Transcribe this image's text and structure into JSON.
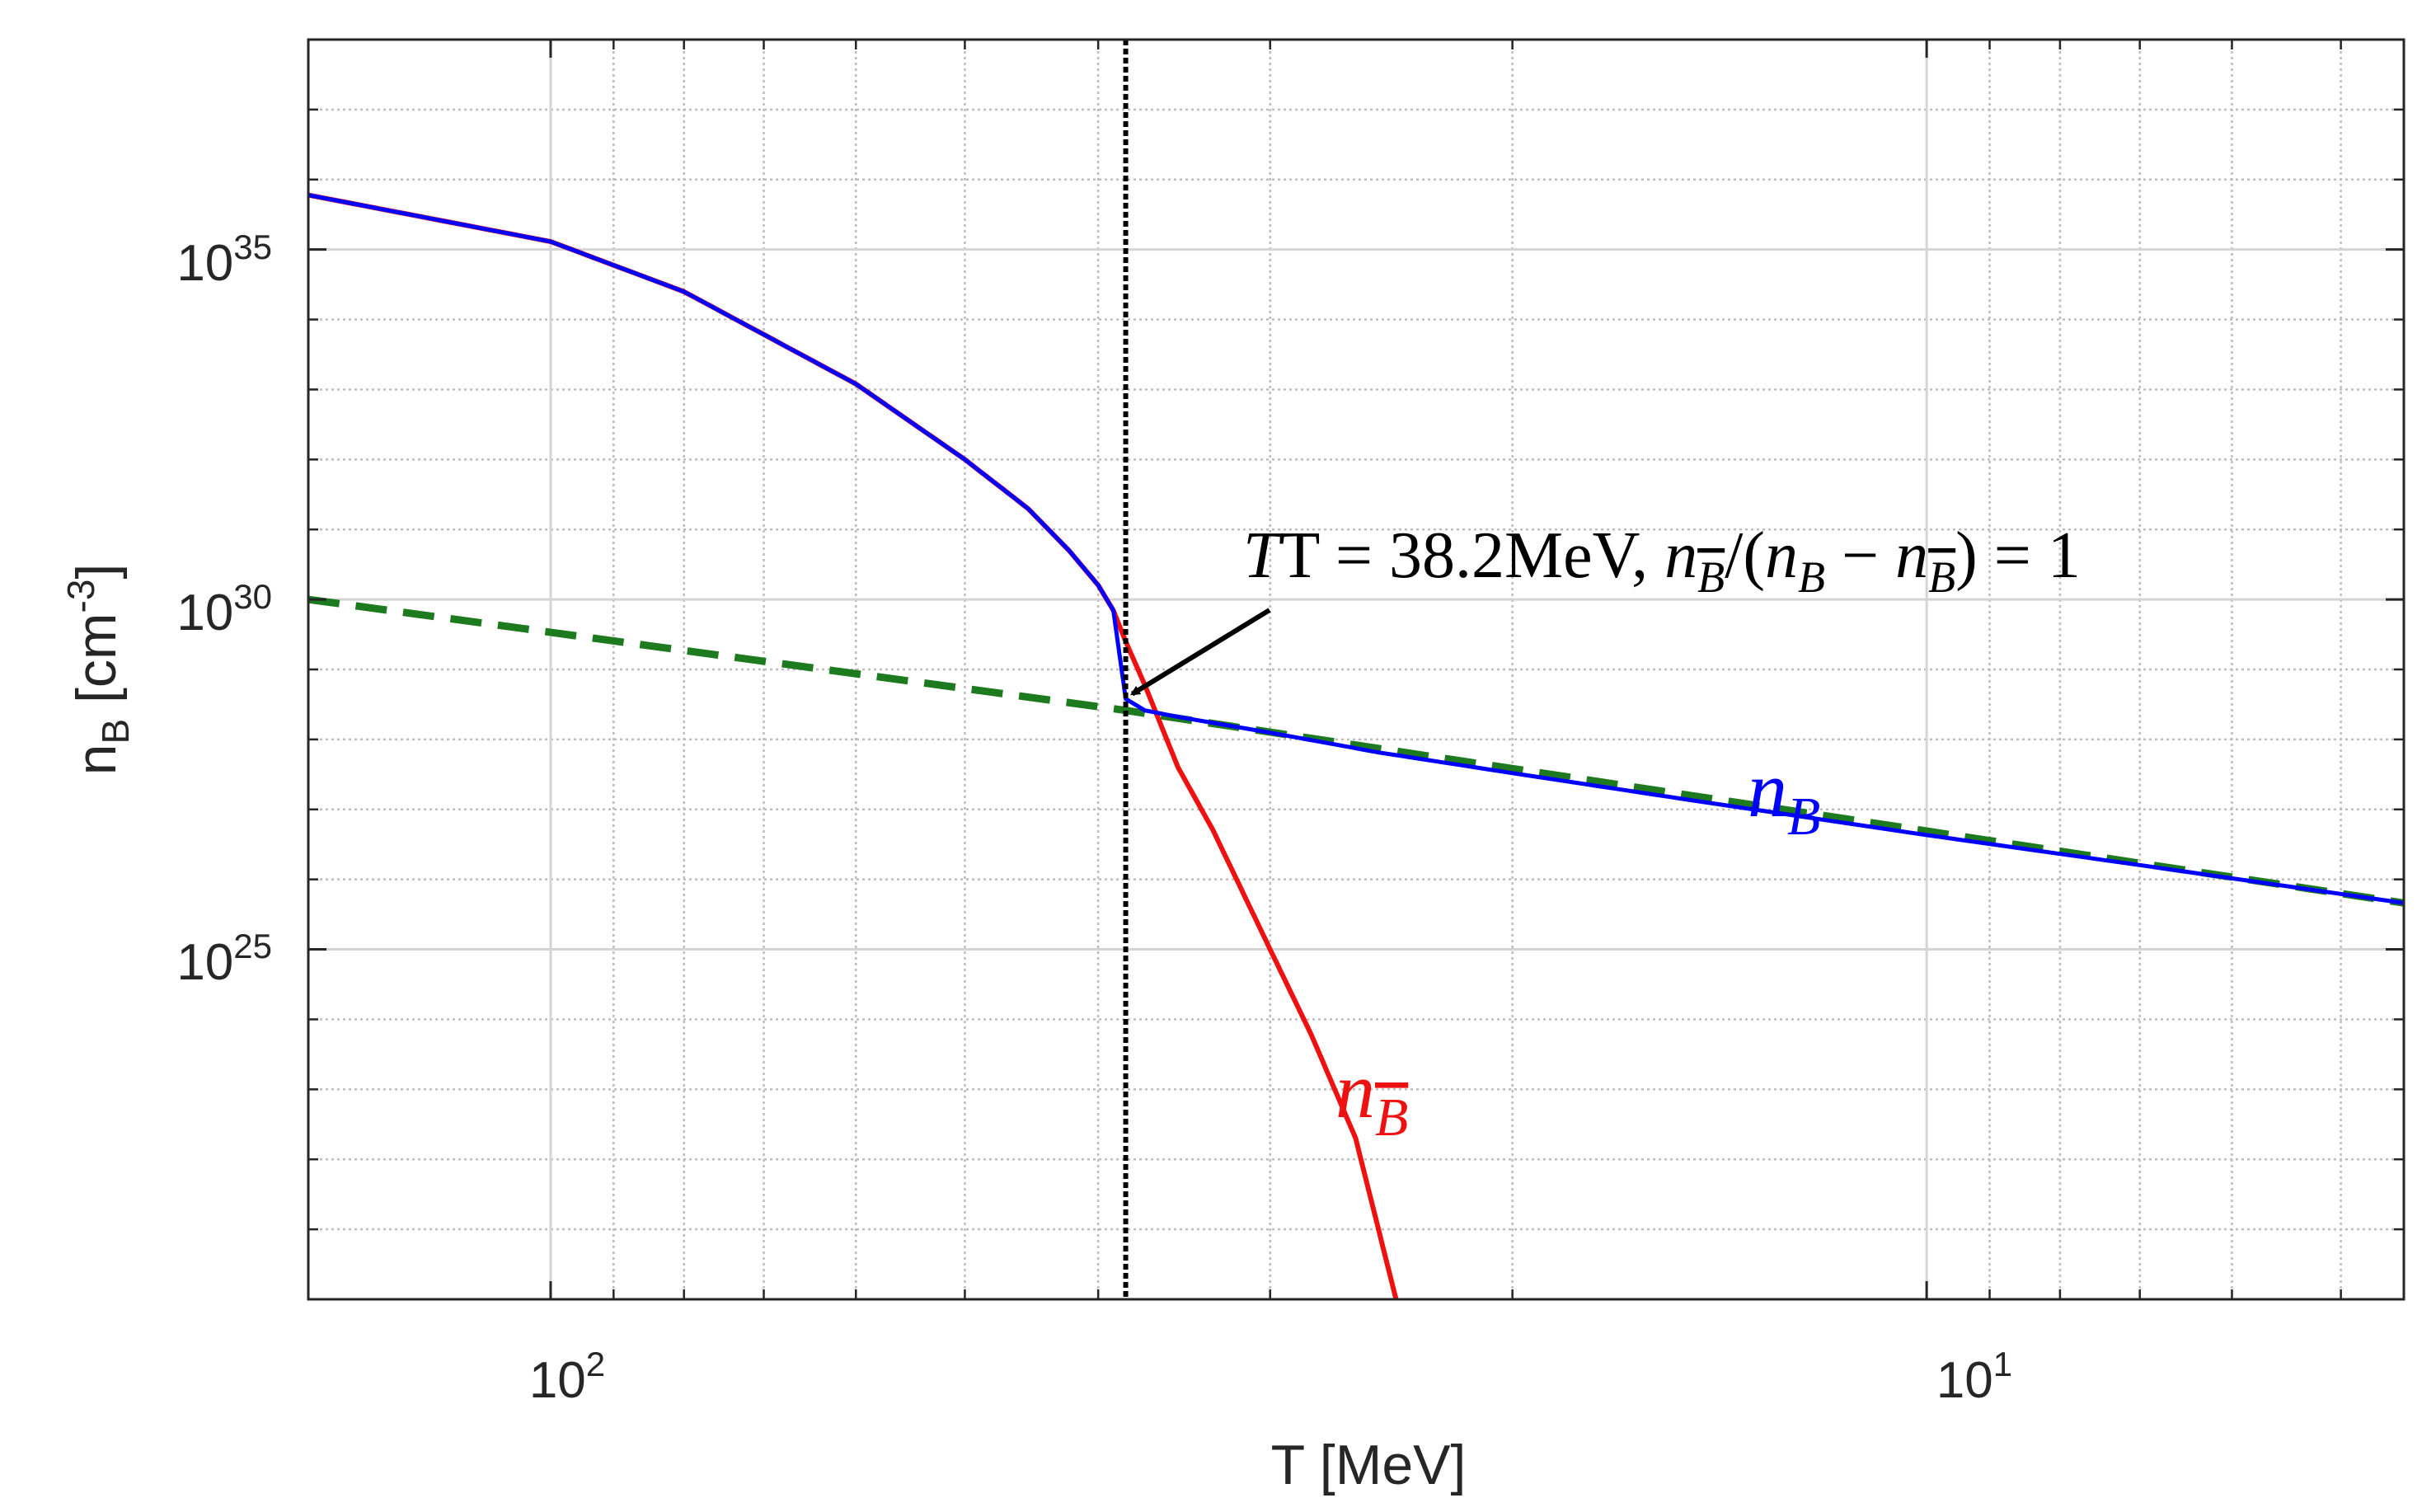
{
  "chart_data": {
    "type": "line",
    "title": "",
    "xlabel": "T [MeV]",
    "ylabel": {
      "base": "n",
      "sub": "B",
      "unit_open": " [cm",
      "unit_sup": "-3",
      "unit_close": "]"
    },
    "x_scale": "log",
    "x_reversed": true,
    "y_scale": "log",
    "xlim": [
      150,
      4.5
    ],
    "ylim": [
      1e+20,
      1e+38
    ],
    "grid": true,
    "x_major_ticks": [
      {
        "value": 100,
        "base": "10",
        "exp": "2"
      },
      {
        "value": 10,
        "base": "10",
        "exp": "1"
      }
    ],
    "y_major_ticks": [
      {
        "value": 1e+25,
        "base": "10",
        "exp": "25"
      },
      {
        "value": 1e+30,
        "base": "10",
        "exp": "30"
      },
      {
        "value": 1e+35,
        "base": "10",
        "exp": "35"
      }
    ],
    "series": [
      {
        "name": "n_B",
        "label_text": "n",
        "label_sub": "B",
        "color": "#0000ff",
        "style": "solid",
        "points": [
          [
            150,
            6e+35
          ],
          [
            100,
            1.3e+35
          ],
          [
            80,
            2.5e+34
          ],
          [
            60,
            1.2e+33
          ],
          [
            50,
            1e+32
          ],
          [
            45,
            2e+31
          ],
          [
            42,
            5e+30
          ],
          [
            40,
            1.6e+30
          ],
          [
            39,
            7e+29
          ],
          [
            38.2,
            3.8e+28
          ],
          [
            37,
            2.6e+28
          ],
          [
            35,
            2.1e+28
          ],
          [
            30,
            1.25e+28
          ],
          [
            25,
            6.5e+27
          ],
          [
            20,
            3.3e+27
          ],
          [
            15,
            1.4e+27
          ],
          [
            10,
            4.3e+26
          ],
          [
            7,
            1.6e+26
          ],
          [
            4.5,
            4.6e+25
          ]
        ]
      },
      {
        "name": "n_B_bar",
        "label_text": "n",
        "label_sub": "B",
        "color": "#ee1111",
        "style": "solid",
        "points": [
          [
            150,
            6e+35
          ],
          [
            100,
            1.3e+35
          ],
          [
            80,
            2.5e+34
          ],
          [
            60,
            1.2e+33
          ],
          [
            50,
            1e+32
          ],
          [
            45,
            2e+31
          ],
          [
            42,
            5e+30
          ],
          [
            40,
            1.6e+30
          ],
          [
            39,
            7e+29
          ],
          [
            38.2,
            2.5e+29
          ],
          [
            37,
            6e+28
          ],
          [
            35,
            4e+27
          ],
          [
            33,
            5e+26
          ],
          [
            30,
            1e+25
          ],
          [
            28,
            6e+23
          ],
          [
            26,
            2e+22
          ],
          [
            24.3,
            1e+20
          ]
        ]
      },
      {
        "name": "n_B_asymptote",
        "color": "#1e7a1e",
        "style": "dashed",
        "points": [
          [
            150,
            1e+30
          ],
          [
            38.2,
            2.6e+28
          ],
          [
            4.5,
            4.6e+25
          ]
        ]
      }
    ],
    "vertical_marker": {
      "x": 38.2,
      "color": "#000000",
      "style": "dotted"
    },
    "annotation": {
      "prefix": "T = 38.2MeV, ",
      "ratio_part1": "n",
      "sub_B": "B",
      "ratio_part2": "/(",
      "ratio_part3": " − ",
      "ratio_part4": ") = 1",
      "arrow_target": {
        "x": 38.2,
        "y": 3.8e+28
      }
    }
  }
}
